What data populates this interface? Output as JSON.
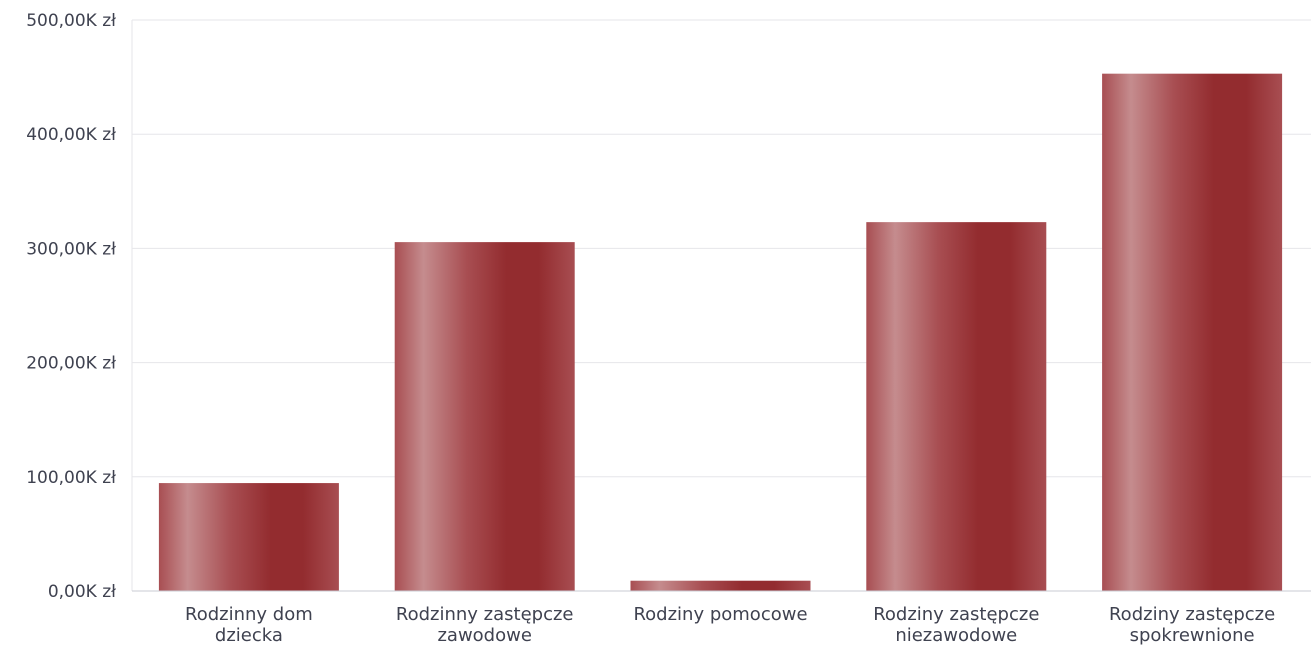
{
  "chart_data": {
    "type": "bar",
    "categories": [
      [
        "Rodzinny dom",
        "dziecka"
      ],
      [
        "Rodzinny zastępcze",
        "zawodowe"
      ],
      [
        "Rodziny pomocowe"
      ],
      [
        "Rodziny zastępcze",
        "niezawodowe"
      ],
      [
        "Rodziny zastępcze",
        "spokrewnione"
      ]
    ],
    "values": [
      94.5,
      305.5,
      9,
      323,
      453
    ],
    "ylim": [
      0,
      500
    ],
    "yticks": [
      0,
      100,
      200,
      300,
      400,
      500
    ],
    "ytick_labels": [
      "0,00K zł",
      "100,00K zł",
      "200,00K zł",
      "300,00K zł",
      "400,00K zł",
      "500,00K zł"
    ],
    "grid": true,
    "colors": {
      "bar_dark": "#932c2f",
      "bar_mid": "#a84e52",
      "bar_light": "#c58c8e"
    }
  }
}
